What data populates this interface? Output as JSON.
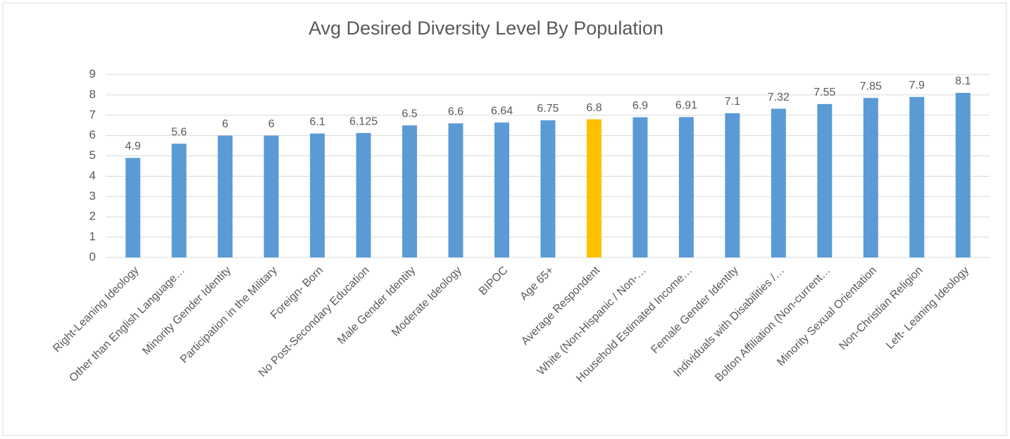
{
  "chart_data": {
    "type": "bar",
    "title": "Avg Desired Diversity Level By Population",
    "categories": [
      "Right-Leaning Ideology",
      "Other than English Language…",
      "Minority Gender Identity",
      "Participation in the Military",
      "Foreign- Born",
      "No Post-Secondary Education",
      "Male Gender Identity",
      "Moderate Ideology",
      "BIPOC",
      "Age 65+",
      "Average Respondent",
      "White (Non-Hispanic / Non-…",
      "Household Estimated Income…",
      "Female Gender Identity",
      "Individuals with Disabilities /…",
      "Bolton Affiliation (Non-current…",
      "Minority Sexual Orientation",
      "Non-Christian Religion",
      "Left- Leaning Ideology"
    ],
    "values": [
      4.9,
      5.6,
      6,
      6,
      6.1,
      6.125,
      6.5,
      6.6,
      6.64,
      6.75,
      6.8,
      6.9,
      6.91,
      7.1,
      7.32,
      7.55,
      7.85,
      7.9,
      8.1
    ],
    "colors": [
      "#5b9bd5",
      "#5b9bd5",
      "#5b9bd5",
      "#5b9bd5",
      "#5b9bd5",
      "#5b9bd5",
      "#5b9bd5",
      "#5b9bd5",
      "#5b9bd5",
      "#5b9bd5",
      "#ffc000",
      "#5b9bd5",
      "#5b9bd5",
      "#5b9bd5",
      "#5b9bd5",
      "#5b9bd5",
      "#5b9bd5",
      "#5b9bd5",
      "#5b9bd5"
    ],
    "ylim": [
      0,
      9
    ],
    "yticks": [
      0,
      1,
      2,
      3,
      4,
      5,
      6,
      7,
      8,
      9
    ],
    "grid": true
  }
}
